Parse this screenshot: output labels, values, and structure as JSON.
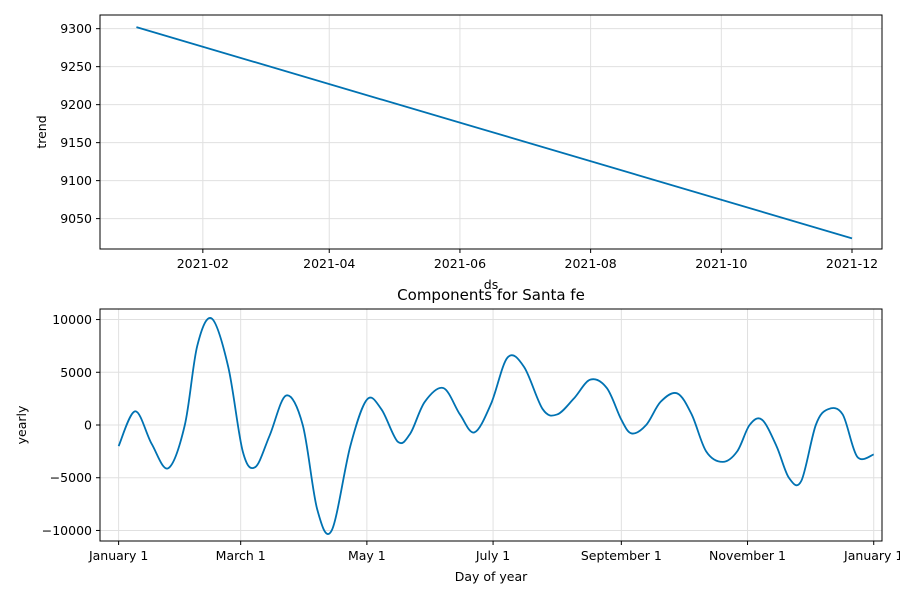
{
  "chart_data": [
    {
      "type": "line",
      "title": "",
      "xlabel": "ds",
      "ylabel": "trend",
      "x_type": "date",
      "xlim": [
        "2020-12-15",
        "2021-12-15"
      ],
      "ylim": [
        9010,
        9318
      ],
      "grid": true,
      "legend": "none",
      "line_color": "#0072b2",
      "x_ticks": [
        {
          "value": "2021-02-01",
          "label": "2021-02"
        },
        {
          "value": "2021-04-01",
          "label": "2021-04"
        },
        {
          "value": "2021-06-01",
          "label": "2021-06"
        },
        {
          "value": "2021-08-01",
          "label": "2021-08"
        },
        {
          "value": "2021-10-01",
          "label": "2021-10"
        },
        {
          "value": "2021-12-01",
          "label": "2021-12"
        }
      ],
      "y_ticks": [
        9050,
        9100,
        9150,
        9200,
        9250,
        9300
      ],
      "series": [
        {
          "x": [
            "2021-01-01",
            "2021-12-01"
          ],
          "y": [
            9302,
            9024
          ]
        }
      ]
    },
    {
      "type": "line",
      "title": "Components for Santa fe",
      "xlabel": "Day of year",
      "ylabel": "yearly",
      "x_type": "day_of_year",
      "xlim": [
        -9,
        369
      ],
      "ylim": [
        -11000,
        11000
      ],
      "grid": true,
      "legend": "none",
      "line_color": "#0072b2",
      "x_ticks": [
        {
          "value": 0,
          "label": "January 1"
        },
        {
          "value": 59,
          "label": "March 1"
        },
        {
          "value": 120,
          "label": "May 1"
        },
        {
          "value": 181,
          "label": "July 1"
        },
        {
          "value": 243,
          "label": "September 1"
        },
        {
          "value": 304,
          "label": "November 1"
        },
        {
          "value": 365,
          "label": "January 1"
        }
      ],
      "y_ticks": [
        {
          "value": 10000,
          "label": "10000"
        },
        {
          "value": 5000,
          "label": "5000"
        },
        {
          "value": 0,
          "label": "0"
        },
        {
          "value": -5000,
          "label": "−5000"
        },
        {
          "value": -10000,
          "label": "−10000"
        }
      ],
      "series": [
        {
          "x": [
            0,
            8,
            16,
            24,
            32,
            38,
            45,
            53,
            60,
            66,
            73,
            81,
            89,
            96,
            103,
            112,
            120,
            127,
            135,
            141,
            148,
            157,
            165,
            172,
            180,
            188,
            196,
            205,
            212,
            220,
            228,
            236,
            243,
            248,
            255,
            262,
            270,
            277,
            284,
            292,
            299,
            305,
            311,
            318,
            324,
            330,
            337,
            343,
            350,
            357,
            365
          ],
          "y": [
            -2000,
            1300,
            -1800,
            -4100,
            0,
            7500,
            10100,
            5500,
            -2500,
            -4000,
            -1000,
            2800,
            0,
            -8000,
            -10000,
            -2000,
            2400,
            1500,
            -1600,
            -800,
            2200,
            3500,
            1000,
            -700,
            2000,
            6400,
            5500,
            1500,
            1000,
            2500,
            4300,
            3500,
            500,
            -800,
            0,
            2200,
            3000,
            1000,
            -2500,
            -3500,
            -2500,
            0,
            500,
            -2000,
            -5000,
            -5300,
            0,
            1500,
            1000,
            -3000,
            -2800
          ]
        }
      ]
    }
  ]
}
